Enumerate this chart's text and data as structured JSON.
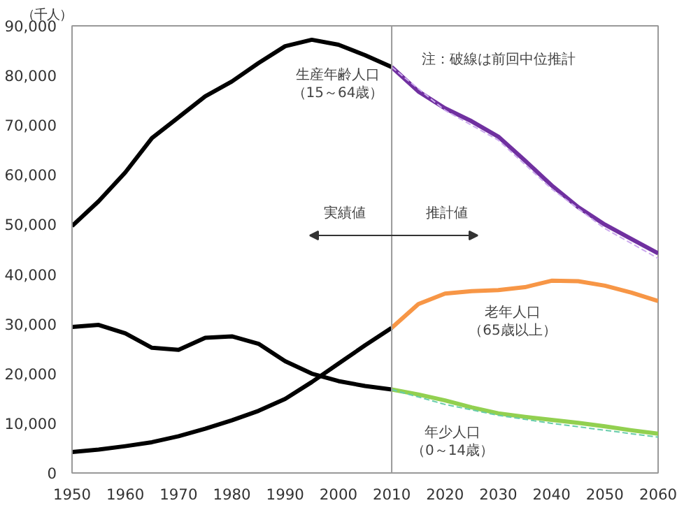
{
  "chart_data": {
    "type": "line",
    "ylabel": "（千人）",
    "xlim": [
      1950,
      2060
    ],
    "xticks": [
      1950,
      1960,
      1970,
      1980,
      1990,
      2000,
      2010,
      2020,
      2030,
      2040,
      2050,
      2060
    ],
    "ylim": [
      0,
      90000
    ],
    "yticks": [
      0,
      {
        "value": 10000,
        "label": "10,000"
      },
      {
        "value": 20000,
        "label": "20,000"
      },
      {
        "value": 30000,
        "label": "30,000"
      },
      {
        "value": 40000,
        "label": "40,000"
      },
      {
        "value": 50000,
        "label": "50,000"
      },
      {
        "value": 60000,
        "label": "60,000"
      },
      {
        "value": 70000,
        "label": "70,000"
      },
      {
        "value": 80000,
        "label": "80,000"
      },
      {
        "value": 90000,
        "label": "90,000"
      }
    ],
    "grid": false,
    "marker": "none",
    "x": [
      1950,
      1955,
      1960,
      1965,
      1970,
      1975,
      1980,
      1985,
      1990,
      1995,
      2000,
      2005,
      2010
    ],
    "series": [
      {
        "name": "生産年齢人口（15～64歳）",
        "color": "#000000",
        "values": [
          49700,
          54700,
          60500,
          67400,
          71600,
          75800,
          78800,
          82500,
          85900,
          87200,
          86200,
          84100,
          81700
        ]
      },
      {
        "color": "#000000",
        "values": [
          29400,
          29800,
          28100,
          25200,
          24800,
          27200,
          27500,
          26000,
          22500,
          20000,
          18500,
          17500,
          16800
        ]
      },
      {
        "color": "#000000",
        "values": [
          4200,
          4700,
          5400,
          6200,
          7400,
          8900,
          10600,
          12500,
          14900,
          18300,
          22000,
          25700,
          29200
        ]
      },
      {
        "color": "#ccaaee",
        "line_style": "dashed",
        "x": [
          2010,
          2020,
          2030,
          2040,
          2050,
          2060
        ],
        "values": [
          81700,
          73000,
          67000,
          57200,
          49200,
          43200
        ]
      },
      {
        "color": "#66ccaa",
        "line_style": "dashed",
        "x": [
          2010,
          2020,
          2030,
          2040,
          2050,
          2060
        ],
        "values": [
          16800,
          13800,
          11600,
          10000,
          8600,
          7200
        ]
      },
      {
        "color": "#7030a0",
        "x": [
          2010,
          2015,
          2020,
          2025,
          2030,
          2035,
          2040,
          2045,
          2050,
          2055,
          2060
        ],
        "values": [
          81700,
          76800,
          73400,
          70800,
          67700,
          62900,
          57900,
          53500,
          50000,
          47100,
          44200
        ]
      },
      {
        "name": "老年人口（65歳以上）",
        "color": "#f79646",
        "x": [
          2010,
          2015,
          2020,
          2025,
          2030,
          2035,
          2040,
          2045,
          2050,
          2055,
          2060
        ],
        "values": [
          29200,
          34000,
          36100,
          36600,
          36800,
          37400,
          38700,
          38600,
          37700,
          36300,
          34600
        ]
      },
      {
        "name": "年少人口（0～14歳）",
        "color": "#92d050",
        "x": [
          2010,
          2015,
          2020,
          2025,
          2030,
          2035,
          2040,
          2045,
          2050,
          2055,
          2060
        ],
        "values": [
          16800,
          15800,
          14600,
          13200,
          12000,
          11300,
          10700,
          10100,
          9400,
          8600,
          7900
        ]
      }
    ],
    "ref_lines": [
      {
        "axis": "x",
        "value": 2010,
        "color": "#999999"
      }
    ],
    "annotations": [
      "注：破線は前回中位推計",
      "実績値",
      "推計値"
    ]
  }
}
